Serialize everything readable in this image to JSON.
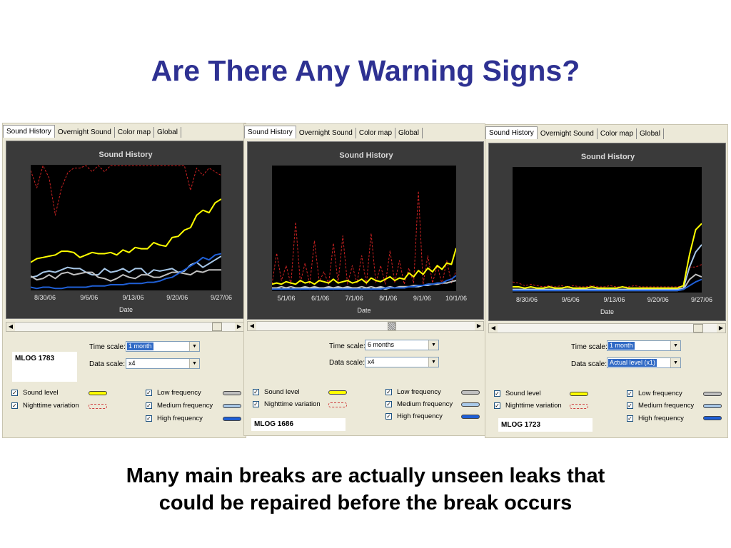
{
  "slide": {
    "title": "Are There Any Warning Signs?",
    "caption_line1": "Many main breaks are actually unseen leaks that",
    "caption_line2": "could be repaired before the break occurs"
  },
  "colors": {
    "title": "#2e3192",
    "sound_level": "#ffff00",
    "nighttime_variation": "#cc2222",
    "low_frequency": "#c0c0c0",
    "medium_frequency": "#a8c8e8",
    "high_frequency": "#1f5fd6"
  },
  "tabs": [
    "Sound History",
    "Overnight Sound",
    "Color map",
    "Global"
  ],
  "controls": {
    "time_scale_label": "Time scale:",
    "data_scale_label": "Data scale:"
  },
  "legend": {
    "sound_level": "Sound level",
    "nighttime_variation": "Nighttime variation",
    "low_frequency": "Low frequency",
    "medium_frequency": "Medium frequency",
    "high_frequency": "High frequency"
  },
  "panels": [
    {
      "id": "MLOG 1783",
      "time_scale": "1 month",
      "data_scale": "x4"
    },
    {
      "id": "MLOG 1686",
      "time_scale": "6 months",
      "data_scale": "x4"
    },
    {
      "id": "MLOG 1723",
      "time_scale": "1 month",
      "data_scale": "Actual level  (x1)"
    }
  ],
  "chart_data": [
    {
      "type": "line",
      "title": "Sound History",
      "xlabel": "Date",
      "ylabel": "",
      "x_ticks": [
        "8/30/06",
        "9/6/06",
        "9/13/06",
        "9/20/06",
        "9/27/06"
      ],
      "grid": false,
      "series": [
        {
          "name": "Sound level",
          "values": [
            0.22,
            0.25,
            0.26,
            0.27,
            0.28,
            0.31,
            0.31,
            0.3,
            0.26,
            0.28,
            0.3,
            0.29,
            0.29,
            0.3,
            0.28,
            0.32,
            0.3,
            0.34,
            0.33,
            0.33,
            0.38,
            0.36,
            0.35,
            0.42,
            0.43,
            0.48,
            0.5,
            0.6,
            0.64,
            0.62,
            0.7,
            0.73
          ]
        },
        {
          "name": "Nighttime variation",
          "values": [
            0.96,
            0.82,
            1.0,
            0.9,
            0.6,
            0.82,
            0.94,
            0.98,
            0.98,
            1.0,
            0.95,
            1.0,
            0.95,
            1.0,
            1.0,
            1.0,
            1.0,
            1.0,
            1.0,
            1.0,
            1.0,
            1.0,
            1.0,
            1.0,
            1.0,
            1.0,
            0.8,
            0.98,
            0.92,
            0.98,
            0.95,
            0.92
          ]
        },
        {
          "name": "Low frequency",
          "values": [
            0.11,
            0.08,
            0.09,
            0.12,
            0.09,
            0.13,
            0.14,
            0.12,
            0.13,
            0.14,
            0.14,
            0.1,
            0.09,
            0.07,
            0.09,
            0.12,
            0.1,
            0.09,
            0.12,
            0.12,
            0.1,
            0.1,
            0.12,
            0.14,
            0.14,
            0.13,
            0.12,
            0.15,
            0.14,
            0.16,
            0.16,
            0.16
          ]
        },
        {
          "name": "Medium frequency",
          "values": [
            0.1,
            0.11,
            0.14,
            0.15,
            0.14,
            0.16,
            0.18,
            0.17,
            0.17,
            0.14,
            0.12,
            0.12,
            0.17,
            0.14,
            0.15,
            0.17,
            0.14,
            0.17,
            0.17,
            0.12,
            0.16,
            0.15,
            0.16,
            0.17,
            0.14,
            0.15,
            0.2,
            0.22,
            0.18,
            0.21,
            0.24,
            0.27
          ]
        },
        {
          "name": "High frequency",
          "values": [
            0.02,
            0.01,
            0.02,
            0.02,
            0.01,
            0.01,
            0.02,
            0.02,
            0.02,
            0.02,
            0.03,
            0.03,
            0.03,
            0.04,
            0.04,
            0.04,
            0.05,
            0.05,
            0.05,
            0.06,
            0.06,
            0.07,
            0.09,
            0.1,
            0.13,
            0.16,
            0.19,
            0.22,
            0.26,
            0.24,
            0.28,
            0.29
          ]
        }
      ]
    },
    {
      "type": "line",
      "title": "Sound History",
      "xlabel": "Date",
      "ylabel": "",
      "x_ticks": [
        "5/1/06",
        "6/1/06",
        "7/1/06",
        "8/1/06",
        "9/1/06",
        "10/1/06"
      ],
      "grid": false,
      "series": [
        {
          "name": "Sound level",
          "values": [
            0.05,
            0.06,
            0.05,
            0.07,
            0.06,
            0.05,
            0.08,
            0.06,
            0.07,
            0.05,
            0.08,
            0.07,
            0.06,
            0.09,
            0.06,
            0.07,
            0.08,
            0.06,
            0.07,
            0.09,
            0.06,
            0.1,
            0.08,
            0.07,
            0.09,
            0.11,
            0.08,
            0.1,
            0.09,
            0.14,
            0.11,
            0.16,
            0.13,
            0.18,
            0.15,
            0.2,
            0.17,
            0.22,
            0.21,
            0.34
          ]
        },
        {
          "name": "Nighttime variation",
          "values": [
            0.05,
            0.3,
            0.08,
            0.2,
            0.05,
            0.55,
            0.06,
            0.22,
            0.05,
            0.4,
            0.07,
            0.15,
            0.05,
            0.38,
            0.06,
            0.44,
            0.05,
            0.2,
            0.06,
            0.28,
            0.05,
            0.46,
            0.06,
            0.2,
            0.05,
            0.32,
            0.06,
            0.24,
            0.05,
            0.18,
            0.06,
            0.8,
            0.05,
            0.28,
            0.06,
            0.2,
            0.05,
            0.24,
            0.06,
            0.16
          ]
        },
        {
          "name": "Low frequency",
          "values": [
            0.02,
            0.02,
            0.03,
            0.02,
            0.03,
            0.02,
            0.02,
            0.03,
            0.02,
            0.03,
            0.02,
            0.02,
            0.03,
            0.02,
            0.03,
            0.02,
            0.03,
            0.02,
            0.02,
            0.03,
            0.02,
            0.03,
            0.02,
            0.03,
            0.02,
            0.03,
            0.02,
            0.03,
            0.03,
            0.03,
            0.04,
            0.04,
            0.04,
            0.05,
            0.05,
            0.05,
            0.06,
            0.06,
            0.07,
            0.08
          ]
        },
        {
          "name": "Medium frequency",
          "values": [
            0.01,
            0.02,
            0.01,
            0.02,
            0.01,
            0.02,
            0.01,
            0.02,
            0.01,
            0.02,
            0.01,
            0.02,
            0.02,
            0.01,
            0.02,
            0.01,
            0.02,
            0.01,
            0.02,
            0.01,
            0.02,
            0.01,
            0.02,
            0.02,
            0.01,
            0.02,
            0.02,
            0.02,
            0.02,
            0.03,
            0.03,
            0.03,
            0.04,
            0.04,
            0.05,
            0.05,
            0.06,
            0.06,
            0.07,
            0.08
          ]
        },
        {
          "name": "High frequency",
          "values": [
            0.01,
            0.01,
            0.01,
            0.01,
            0.01,
            0.01,
            0.01,
            0.01,
            0.01,
            0.01,
            0.01,
            0.01,
            0.01,
            0.01,
            0.01,
            0.01,
            0.01,
            0.01,
            0.01,
            0.01,
            0.01,
            0.01,
            0.01,
            0.01,
            0.02,
            0.02,
            0.02,
            0.02,
            0.02,
            0.03,
            0.03,
            0.04,
            0.04,
            0.05,
            0.05,
            0.06,
            0.06,
            0.08,
            0.09,
            0.12
          ]
        }
      ]
    },
    {
      "type": "line",
      "title": "Sound History",
      "xlabel": "Date",
      "ylabel": "",
      "x_ticks": [
        "8/30/06",
        "9/6/06",
        "9/13/06",
        "9/20/06",
        "9/27/06"
      ],
      "grid": false,
      "series": [
        {
          "name": "Sound level",
          "values": [
            0.04,
            0.04,
            0.03,
            0.04,
            0.03,
            0.03,
            0.04,
            0.03,
            0.03,
            0.04,
            0.03,
            0.03,
            0.03,
            0.04,
            0.03,
            0.03,
            0.03,
            0.03,
            0.04,
            0.03,
            0.03,
            0.03,
            0.03,
            0.03,
            0.03,
            0.03,
            0.03,
            0.03,
            0.05,
            0.3,
            0.5,
            0.55
          ]
        },
        {
          "name": "Nighttime variation",
          "values": [
            0.08,
            0.07,
            0.05,
            0.06,
            0.05,
            0.04,
            0.05,
            0.04,
            0.05,
            0.04,
            0.05,
            0.04,
            0.04,
            0.05,
            0.04,
            0.04,
            0.05,
            0.04,
            0.04,
            0.04,
            0.05,
            0.04,
            0.04,
            0.04,
            0.04,
            0.04,
            0.04,
            0.04,
            0.05,
            0.2,
            0.2,
            0.22
          ]
        },
        {
          "name": "Low frequency",
          "values": [
            0.01,
            0.01,
            0.01,
            0.01,
            0.01,
            0.01,
            0.01,
            0.01,
            0.01,
            0.01,
            0.01,
            0.01,
            0.01,
            0.01,
            0.01,
            0.01,
            0.01,
            0.01,
            0.01,
            0.01,
            0.01,
            0.01,
            0.01,
            0.01,
            0.01,
            0.01,
            0.01,
            0.01,
            0.02,
            0.1,
            0.14,
            0.12
          ]
        },
        {
          "name": "Medium frequency",
          "values": [
            0.02,
            0.02,
            0.02,
            0.02,
            0.02,
            0.02,
            0.02,
            0.02,
            0.02,
            0.02,
            0.02,
            0.02,
            0.02,
            0.02,
            0.02,
            0.02,
            0.02,
            0.02,
            0.02,
            0.02,
            0.02,
            0.02,
            0.02,
            0.02,
            0.02,
            0.02,
            0.02,
            0.02,
            0.03,
            0.2,
            0.32,
            0.38
          ]
        },
        {
          "name": "High frequency",
          "values": [
            0.01,
            0.01,
            0.01,
            0.01,
            0.01,
            0.01,
            0.01,
            0.01,
            0.01,
            0.01,
            0.01,
            0.01,
            0.01,
            0.01,
            0.01,
            0.01,
            0.01,
            0.01,
            0.01,
            0.01,
            0.01,
            0.01,
            0.01,
            0.01,
            0.01,
            0.01,
            0.01,
            0.01,
            0.02,
            0.05,
            0.08,
            0.1
          ]
        }
      ]
    }
  ]
}
